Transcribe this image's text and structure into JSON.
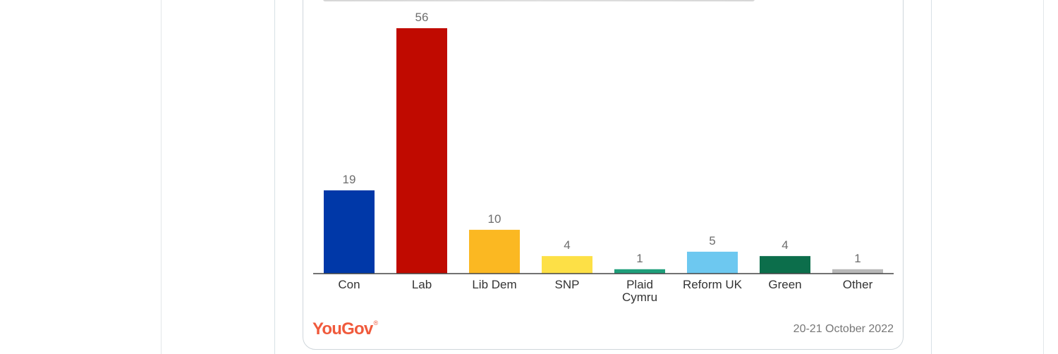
{
  "chart_data": {
    "type": "bar",
    "title": "",
    "xlabel": "",
    "ylabel": "",
    "categories": [
      "Con",
      "Lab",
      "Lib Dem",
      "SNP",
      "Plaid Cymru",
      "Reform UK",
      "Green",
      "Other"
    ],
    "category_lines": [
      [
        "Con"
      ],
      [
        "Lab"
      ],
      [
        "Lib Dem"
      ],
      [
        "SNP"
      ],
      [
        "Plaid",
        "Cymru"
      ],
      [
        "Reform UK"
      ],
      [
        "Green"
      ],
      [
        "Other"
      ]
    ],
    "values": [
      19,
      56,
      10,
      4,
      1,
      5,
      4,
      1
    ],
    "colors": [
      "#0038a8",
      "#c00a00",
      "#fbb822",
      "#fde046",
      "#1e9e7a",
      "#6dc8f0",
      "#0c6e4b",
      "#b8b8b8"
    ],
    "ylim": [
      0,
      56
    ],
    "grid": false,
    "legend": "none"
  },
  "brand": {
    "logo_text": "YouGov",
    "logo_mark": "®",
    "logo_color": "#f05a3c"
  },
  "footer": {
    "date": "20-21 October 2022"
  }
}
